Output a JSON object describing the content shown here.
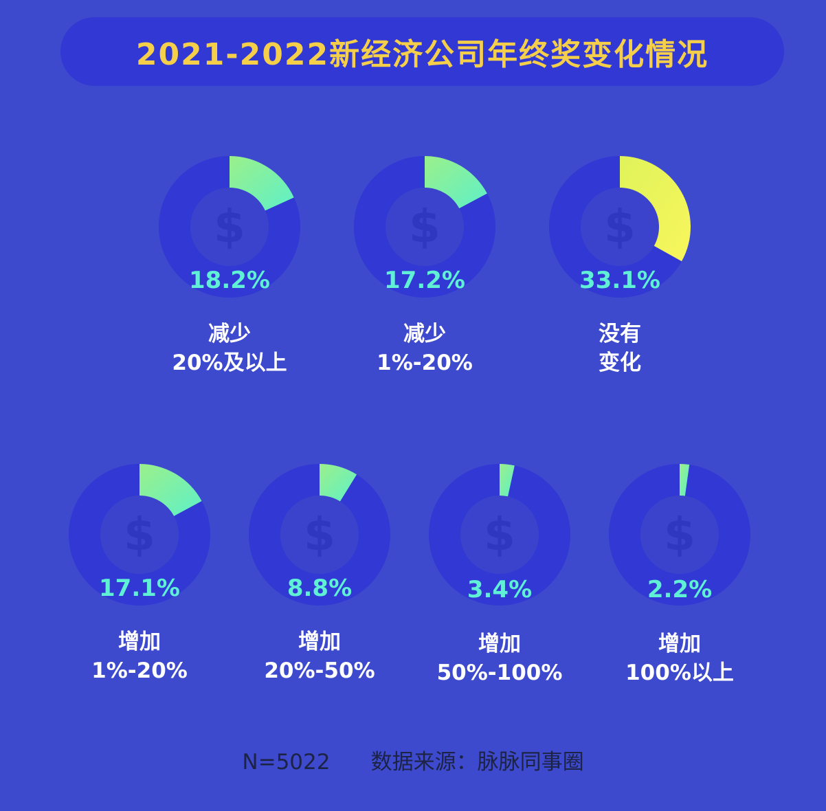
{
  "title": "2021-2022新经济公司年终奖变化情况",
  "footer": {
    "n": "N=5022",
    "source": "数据来源：脉脉同事圈"
  },
  "colors": {
    "background": "#3d4acd",
    "title_bar": "#3138d3",
    "title_text": "#f5cf4a",
    "ring_track": "#3138d3",
    "center_disc": "#3b42cc",
    "dollar": "#2f37c0",
    "highlight_start": "#dff35a",
    "highlight_end": "#f8f65c",
    "accent_start": "#9bf08a",
    "accent_end": "#5ef0c8",
    "percent_text": "#5ff0d6"
  },
  "chart_data": {
    "type": "pie",
    "title": "2021-2022新经济公司年终奖变化情况",
    "categories": [
      "减少20%及以上",
      "减少1%-20%",
      "没有变化",
      "增加1%-20%",
      "增加20%-50%",
      "增加50%-100%",
      "增加100%以上"
    ],
    "values": [
      18.2,
      17.2,
      33.1,
      17.1,
      8.8,
      3.4,
      2.2
    ],
    "unit": "%",
    "items": [
      {
        "label_line1": "减少",
        "label_line2": "20%及以上",
        "value": 18.2,
        "value_label": "18.2%",
        "highlight": false
      },
      {
        "label_line1": "减少",
        "label_line2": "1%-20%",
        "value": 17.2,
        "value_label": "17.2%",
        "highlight": false
      },
      {
        "label_line1": "没有",
        "label_line2": "变化",
        "value": 33.1,
        "value_label": "33.1%",
        "highlight": true
      },
      {
        "label_line1": "增加",
        "label_line2": "1%-20%",
        "value": 17.1,
        "value_label": "17.1%",
        "highlight": false
      },
      {
        "label_line1": "增加",
        "label_line2": "20%-50%",
        "value": 8.8,
        "value_label": "8.8%",
        "highlight": false
      },
      {
        "label_line1": "增加",
        "label_line2": "50%-100%",
        "value": 3.4,
        "value_label": "3.4%",
        "highlight": false
      },
      {
        "label_line1": "增加",
        "label_line2": "100%以上",
        "value": 2.2,
        "value_label": "2.2%",
        "highlight": false
      }
    ]
  }
}
